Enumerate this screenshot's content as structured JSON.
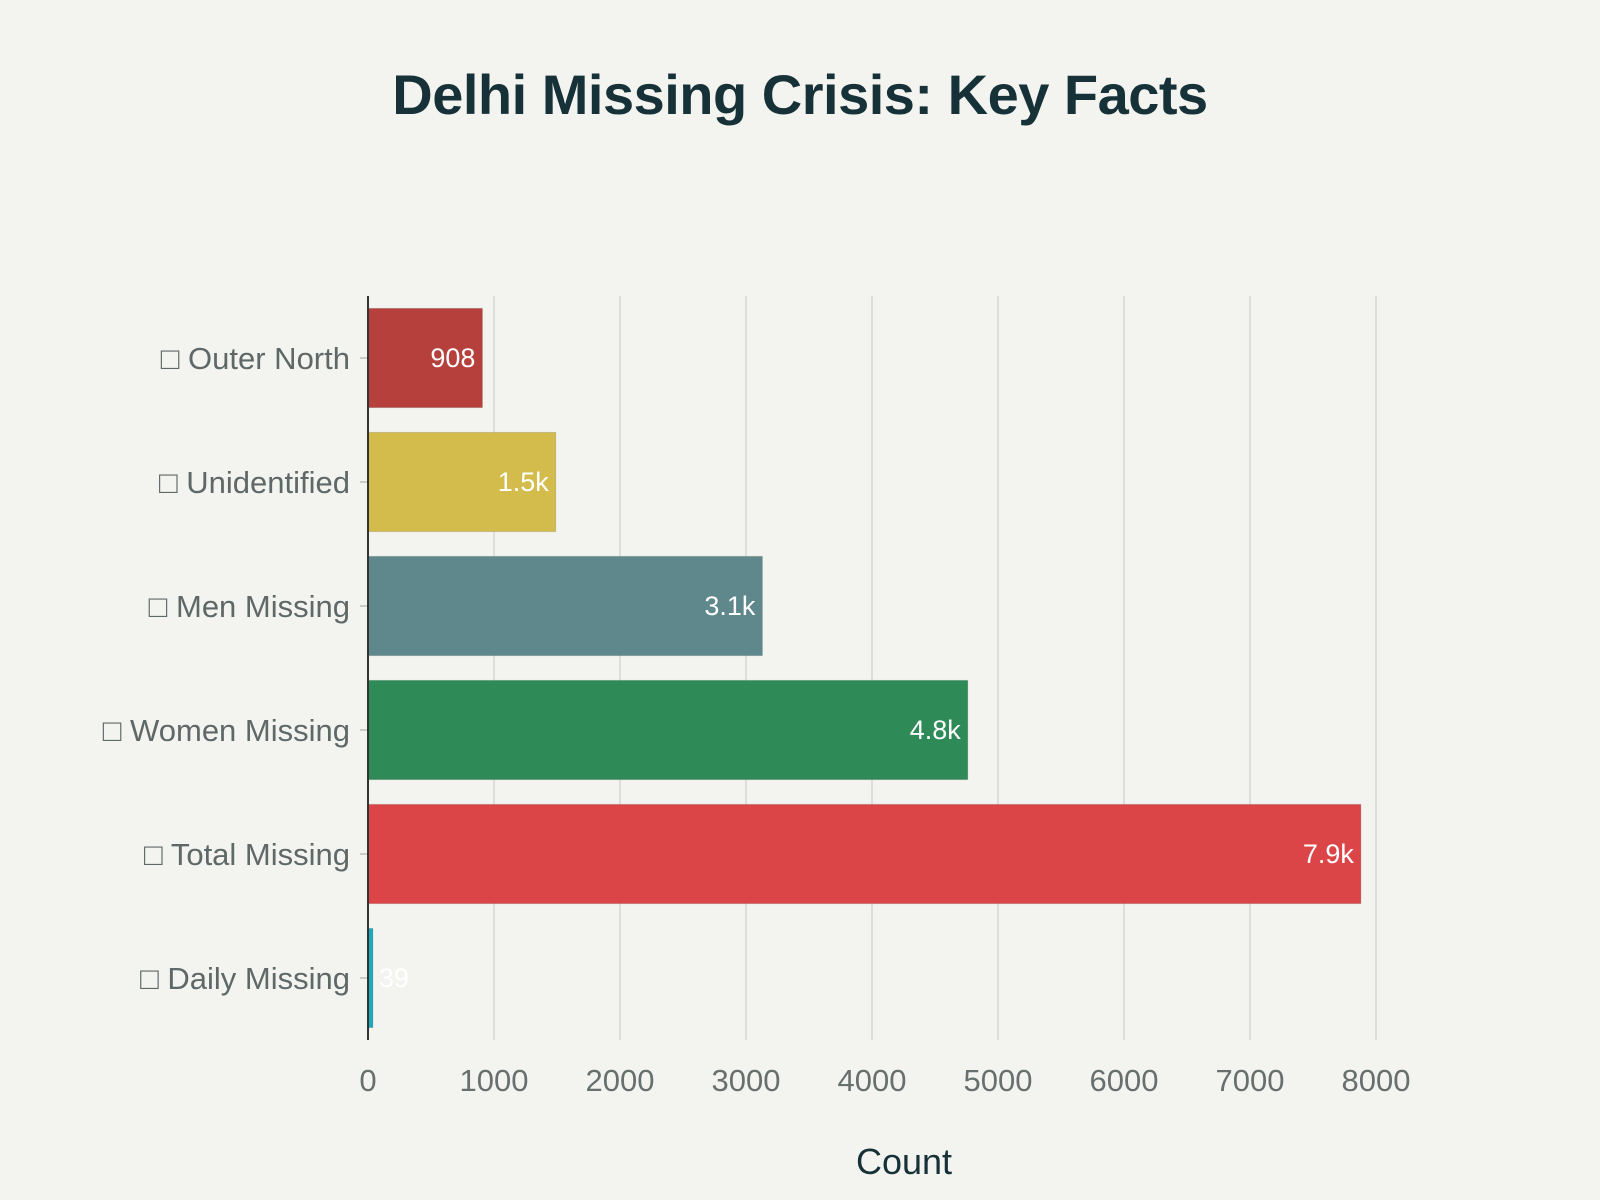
{
  "chart_data": {
    "type": "bar",
    "orientation": "horizontal",
    "title": "Delhi Missing Crisis: Key Facts",
    "xlabel": "Count",
    "ylabel": "",
    "xlim": [
      0,
      8000
    ],
    "x_ticks": [
      0,
      1000,
      2000,
      3000,
      4000,
      5000,
      6000,
      7000,
      8000
    ],
    "grid": true,
    "categories": [
      "□ Outer North",
      "□ Unidentified",
      "□ Men Missing",
      "□ Women Missing",
      "□ Total Missing",
      "□ Daily Missing"
    ],
    "values": [
      908,
      1490,
      3130,
      4760,
      7880,
      39
    ],
    "value_labels": [
      "908",
      "1.5k",
      "3.1k",
      "4.8k",
      "7.9k",
      "39"
    ],
    "colors": [
      "#b5403c",
      "#d3bb4c",
      "#5f888c",
      "#2e8a56",
      "#dc4548",
      "#1ba9be"
    ]
  }
}
